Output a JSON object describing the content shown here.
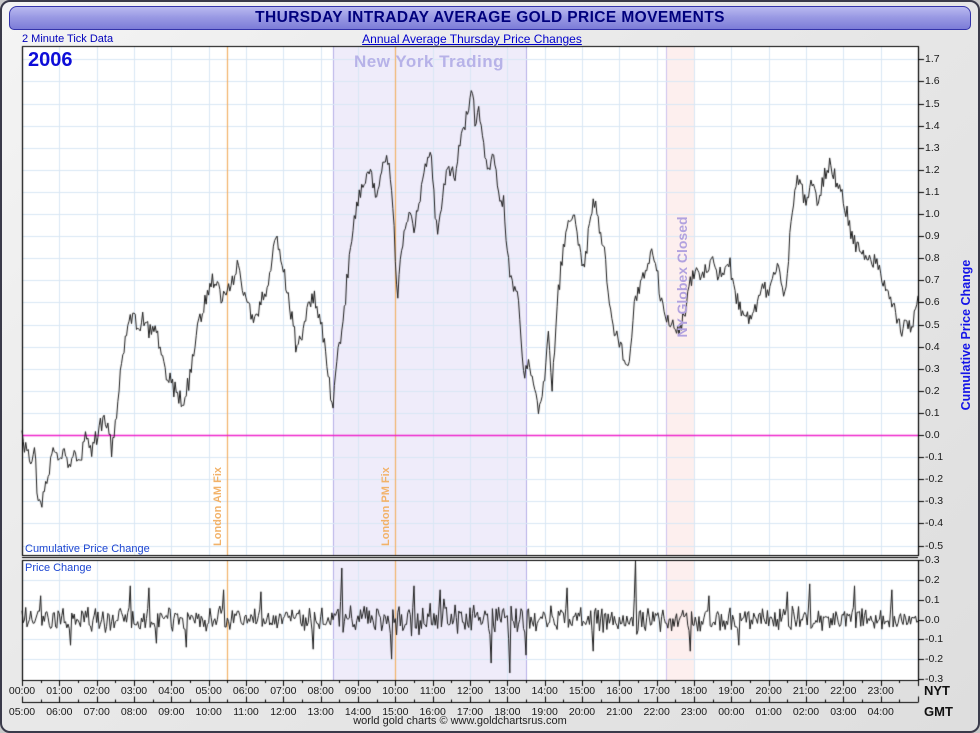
{
  "window": {
    "title": "THURSDAY INTRADAY AVERAGE GOLD PRICE MOVEMENTS"
  },
  "header": {
    "tick_data_label": "2 Minute Tick Data",
    "subtitle": "Annual Average Thursday Price Changes"
  },
  "annotations": {
    "year": "2006",
    "ny_trading": "New York Trading",
    "globex_closed": "NY Globex Closed",
    "london_am_fix": "London AM Fix",
    "london_pm_fix": "London PM Fix",
    "cumulative_panel_label": "Cumulative Price Change",
    "price_panel_label": "Price Change"
  },
  "axis": {
    "right_label": "Cumulative Price Change",
    "nyt_label": "NYT",
    "gmt_label": "GMT"
  },
  "footer": {
    "credit": "world gold charts © www.goldchartsrus.com"
  },
  "colors": {
    "titlebar_text": "#00007d",
    "blue_label": "#0000cc",
    "grid": "#d9e7f5",
    "series_line": "#1b1b1b",
    "zero_line": "#ee22cc",
    "fix_line": "#f2b269",
    "ny_band_fill": "rgba(226,221,246,0.55)",
    "ny_band_edge": "#b6b0e8",
    "globex_band_fill": "rgba(252,233,232,0.75)",
    "globex_band_edge": "#cdc2ee",
    "panel_border": "#000000"
  },
  "chart_data": {
    "type": "line",
    "title": "THURSDAY INTRADAY AVERAGE GOLD PRICE MOVEMENTS",
    "subtitle": "Annual Average Thursday Price Changes",
    "x_unit": "hours",
    "x_range": [
      0,
      24
    ],
    "x_ticks_nyt": [
      "00:00",
      "01:00",
      "02:00",
      "03:00",
      "04:00",
      "05:00",
      "06:00",
      "07:00",
      "08:00",
      "09:00",
      "10:00",
      "11:00",
      "12:00",
      "13:00",
      "14:00",
      "15:00",
      "16:00",
      "17:00",
      "18:00",
      "19:00",
      "20:00",
      "21:00",
      "22:00",
      "23:00"
    ],
    "x_ticks_gmt": [
      "05:00",
      "06:00",
      "07:00",
      "08:00",
      "09:00",
      "10:00",
      "11:00",
      "12:00",
      "13:00",
      "14:00",
      "15:00",
      "16:00",
      "17:00",
      "18:00",
      "19:00",
      "20:00",
      "21:00",
      "22:00",
      "23:00",
      "00:00",
      "01:00",
      "02:00",
      "03:00",
      "04:00"
    ],
    "regions": [
      {
        "label": "New York Trading",
        "from": 8.33,
        "to": 13.5,
        "style": "ny"
      },
      {
        "label": "NY Globex Closed",
        "from": 17.25,
        "to": 18.0,
        "style": "globex"
      }
    ],
    "vlines": [
      {
        "label": "London AM Fix",
        "at": 5.5
      },
      {
        "label": "London PM Fix",
        "at": 10.0
      }
    ],
    "panels": [
      {
        "name": "cumulative_price_change",
        "ylabel": "Cumulative Price Change",
        "ylim": [
          -0.545,
          1.76
        ],
        "yticks": [
          1.7,
          1.6,
          1.5,
          1.4,
          1.3,
          1.2,
          1.1,
          1.0,
          0.9,
          0.8,
          0.7,
          0.6,
          0.5,
          0.4,
          0.3,
          0.2,
          0.1,
          0.0,
          -0.1,
          -0.2,
          -0.3,
          -0.4,
          -0.5
        ],
        "zero_line": 0.0,
        "noise_amplitude": 0.032,
        "seed": 2006,
        "series": [
          {
            "name": "2006",
            "points": [
              [
                0.0,
                0.02
              ],
              [
                0.1,
                -0.08
              ],
              [
                0.25,
                -0.13
              ],
              [
                0.33,
                -0.07
              ],
              [
                0.42,
                -0.28
              ],
              [
                0.5,
                -0.3
              ],
              [
                0.6,
                -0.26
              ],
              [
                0.7,
                -0.19
              ],
              [
                0.85,
                -0.05
              ],
              [
                1.0,
                -0.11
              ],
              [
                1.1,
                -0.06
              ],
              [
                1.25,
                -0.14
              ],
              [
                1.4,
                -0.09
              ],
              [
                1.55,
                -0.13
              ],
              [
                1.7,
                -0.01
              ],
              [
                1.85,
                -0.07
              ],
              [
                2.0,
                -0.02
              ],
              [
                2.1,
                0.05
              ],
              [
                2.25,
                0.07
              ],
              [
                2.4,
                -0.06
              ],
              [
                2.55,
                0.08
              ],
              [
                2.7,
                0.38
              ],
              [
                2.85,
                0.5
              ],
              [
                3.0,
                0.55
              ],
              [
                3.1,
                0.45
              ],
              [
                3.25,
                0.53
              ],
              [
                3.4,
                0.47
              ],
              [
                3.55,
                0.52
              ],
              [
                3.7,
                0.4
              ],
              [
                3.85,
                0.28
              ],
              [
                4.0,
                0.24
              ],
              [
                4.15,
                0.17
              ],
              [
                4.3,
                0.14
              ],
              [
                4.45,
                0.22
              ],
              [
                4.6,
                0.38
              ],
              [
                4.75,
                0.52
              ],
              [
                4.9,
                0.6
              ],
              [
                5.05,
                0.68
              ],
              [
                5.2,
                0.71
              ],
              [
                5.35,
                0.62
              ],
              [
                5.5,
                0.66
              ],
              [
                5.65,
                0.7
              ],
              [
                5.8,
                0.77
              ],
              [
                5.95,
                0.63
              ],
              [
                6.1,
                0.57
              ],
              [
                6.25,
                0.52
              ],
              [
                6.4,
                0.6
              ],
              [
                6.55,
                0.66
              ],
              [
                6.7,
                0.8
              ],
              [
                6.8,
                0.88
              ],
              [
                6.95,
                0.8
              ],
              [
                7.1,
                0.65
              ],
              [
                7.25,
                0.52
              ],
              [
                7.35,
                0.37
              ],
              [
                7.5,
                0.45
              ],
              [
                7.65,
                0.58
              ],
              [
                7.8,
                0.64
              ],
              [
                7.95,
                0.55
              ],
              [
                8.1,
                0.4
              ],
              [
                8.2,
                0.28
              ],
              [
                8.33,
                0.13
              ],
              [
                8.45,
                0.35
              ],
              [
                8.6,
                0.52
              ],
              [
                8.75,
                0.78
              ],
              [
                8.9,
                0.98
              ],
              [
                9.05,
                1.1
              ],
              [
                9.2,
                1.16
              ],
              [
                9.35,
                1.2
              ],
              [
                9.5,
                1.08
              ],
              [
                9.65,
                1.22
              ],
              [
                9.8,
                1.25
              ],
              [
                9.95,
                1.02
              ],
              [
                10.05,
                0.62
              ],
              [
                10.2,
                0.88
              ],
              [
                10.35,
                1.02
              ],
              [
                10.5,
                0.92
              ],
              [
                10.65,
                1.08
              ],
              [
                10.8,
                1.22
              ],
              [
                10.95,
                1.28
              ],
              [
                11.05,
                1.02
              ],
              [
                11.15,
                0.92
              ],
              [
                11.3,
                1.12
              ],
              [
                11.45,
                1.22
              ],
              [
                11.6,
                1.18
              ],
              [
                11.75,
                1.32
              ],
              [
                11.9,
                1.42
              ],
              [
                12.05,
                1.57
              ],
              [
                12.15,
                1.4
              ],
              [
                12.25,
                1.48
              ],
              [
                12.4,
                1.25
              ],
              [
                12.5,
                1.2
              ],
              [
                12.6,
                1.28
              ],
              [
                12.75,
                1.12
              ],
              [
                12.9,
                1.06
              ],
              [
                13.0,
                0.82
              ],
              [
                13.15,
                0.68
              ],
              [
                13.3,
                0.62
              ],
              [
                13.45,
                0.22
              ],
              [
                13.55,
                0.35
              ],
              [
                13.7,
                0.24
              ],
              [
                13.85,
                0.1
              ],
              [
                14.0,
                0.28
              ],
              [
                14.1,
                0.45
              ],
              [
                14.2,
                0.2
              ],
              [
                14.35,
                0.62
              ],
              [
                14.5,
                0.85
              ],
              [
                14.65,
                0.95
              ],
              [
                14.8,
                1.0
              ],
              [
                14.95,
                0.82
              ],
              [
                15.05,
                0.72
              ],
              [
                15.2,
                0.95
              ],
              [
                15.3,
                1.07
              ],
              [
                15.45,
                0.95
              ],
              [
                15.6,
                0.85
              ],
              [
                15.75,
                0.55
              ],
              [
                15.85,
                0.48
              ],
              [
                16.0,
                0.43
              ],
              [
                16.15,
                0.32
              ],
              [
                16.25,
                0.28
              ],
              [
                16.4,
                0.62
              ],
              [
                16.55,
                0.68
              ],
              [
                16.7,
                0.72
              ],
              [
                16.85,
                0.86
              ],
              [
                17.0,
                0.74
              ],
              [
                17.15,
                0.58
              ],
              [
                17.3,
                0.52
              ],
              [
                17.45,
                0.5
              ],
              [
                17.6,
                0.47
              ],
              [
                17.75,
                0.55
              ],
              [
                17.9,
                0.68
              ],
              [
                18.05,
                0.75
              ],
              [
                18.2,
                0.72
              ],
              [
                18.35,
                0.76
              ],
              [
                18.5,
                0.78
              ],
              [
                18.65,
                0.72
              ],
              [
                18.8,
                0.74
              ],
              [
                18.95,
                0.77
              ],
              [
                19.1,
                0.65
              ],
              [
                19.25,
                0.55
              ],
              [
                19.4,
                0.52
              ],
              [
                19.55,
                0.55
              ],
              [
                19.7,
                0.6
              ],
              [
                19.85,
                0.66
              ],
              [
                20.0,
                0.65
              ],
              [
                20.1,
                0.7
              ],
              [
                20.25,
                0.78
              ],
              [
                20.35,
                0.68
              ],
              [
                20.45,
                0.64
              ],
              [
                20.6,
                0.95
              ],
              [
                20.75,
                1.15
              ],
              [
                20.85,
                1.17
              ],
              [
                20.95,
                1.05
              ],
              [
                21.1,
                1.12
              ],
              [
                21.2,
                1.16
              ],
              [
                21.3,
                1.05
              ],
              [
                21.4,
                1.12
              ],
              [
                21.5,
                1.18
              ],
              [
                21.65,
                1.23
              ],
              [
                21.8,
                1.15
              ],
              [
                21.95,
                1.08
              ],
              [
                22.1,
                1.0
              ],
              [
                22.25,
                0.9
              ],
              [
                22.4,
                0.85
              ],
              [
                22.55,
                0.82
              ],
              [
                22.7,
                0.78
              ],
              [
                22.85,
                0.8
              ],
              [
                23.0,
                0.72
              ],
              [
                23.15,
                0.66
              ],
              [
                23.3,
                0.6
              ],
              [
                23.45,
                0.52
              ],
              [
                23.6,
                0.46
              ],
              [
                23.7,
                0.53
              ],
              [
                23.8,
                0.48
              ],
              [
                23.9,
                0.55
              ],
              [
                24.0,
                0.63
              ]
            ]
          }
        ]
      },
      {
        "name": "price_change",
        "ylabel": "Price Change",
        "ylim": [
          -0.305,
          0.3
        ],
        "yticks": [
          0.3,
          0.2,
          0.1,
          0.0,
          -0.1,
          -0.2,
          -0.3
        ],
        "noise_amplitude": 0.052,
        "ny_noise_amplitude": 0.072,
        "seed": 881,
        "spikes": [
          [
            0.5,
            0.12
          ],
          [
            1.3,
            -0.13
          ],
          [
            2.9,
            0.17
          ],
          [
            3.4,
            0.16
          ],
          [
            3.6,
            -0.12
          ],
          [
            4.4,
            -0.14
          ],
          [
            5.4,
            0.15
          ],
          [
            6.4,
            0.14
          ],
          [
            7.8,
            -0.15
          ],
          [
            8.57,
            0.26
          ],
          [
            9.9,
            -0.2
          ],
          [
            10.5,
            0.17
          ],
          [
            11.2,
            0.15
          ],
          [
            12.55,
            -0.22
          ],
          [
            13.07,
            -0.27
          ],
          [
            13.5,
            -0.18
          ],
          [
            14.6,
            0.16
          ],
          [
            15.3,
            -0.16
          ],
          [
            16.42,
            0.3
          ],
          [
            17.9,
            -0.16
          ],
          [
            18.4,
            0.12
          ],
          [
            19.2,
            -0.13
          ],
          [
            20.5,
            0.14
          ],
          [
            21.1,
            0.18
          ],
          [
            22.3,
            0.17
          ],
          [
            23.3,
            0.15
          ]
        ]
      }
    ]
  }
}
